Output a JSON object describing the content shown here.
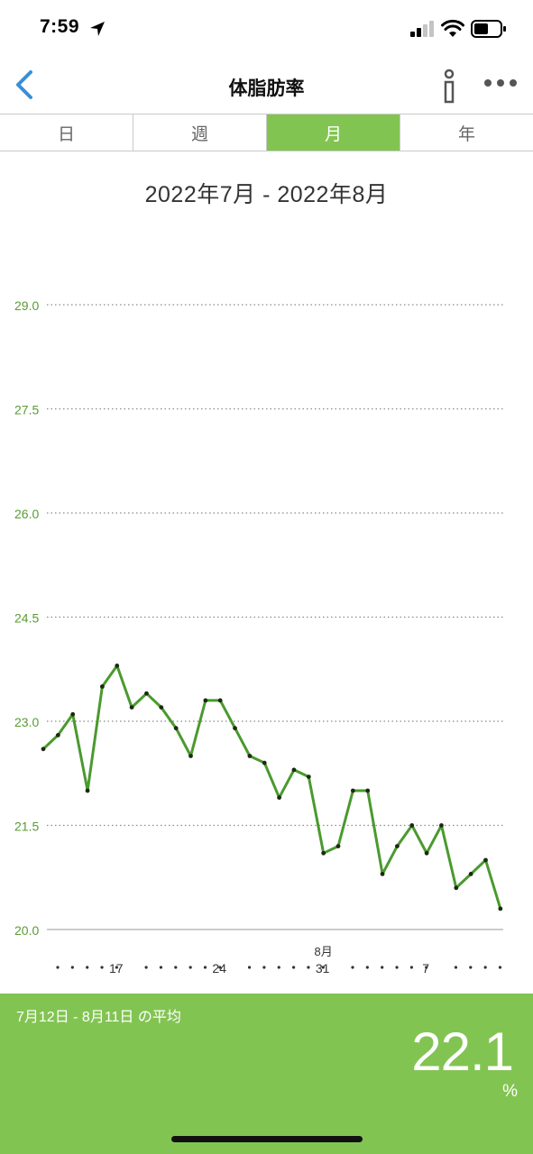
{
  "status_bar": {
    "time": "7:59"
  },
  "nav": {
    "title": "体脂肪率"
  },
  "tabs": [
    {
      "label": "日",
      "active": false
    },
    {
      "label": "週",
      "active": false
    },
    {
      "label": "月",
      "active": true
    },
    {
      "label": "年",
      "active": false
    }
  ],
  "range_title": "2022年7月 - 2022年8月",
  "colors": {
    "accent": "#82c452",
    "line": "#4a9a2e",
    "axis_label": "#5b9a35"
  },
  "chart_data": {
    "type": "line",
    "y_ticks": [
      "20.0",
      "21.5",
      "23.0",
      "24.5",
      "26.0",
      "27.5",
      "29.0"
    ],
    "ylim": [
      20.0,
      29.0
    ],
    "x_tick_labels": [
      {
        "label": "17",
        "index": 5
      },
      {
        "label": "24",
        "index": 12
      },
      {
        "label": "31",
        "index": 19
      },
      {
        "label": "7",
        "index": 26
      }
    ],
    "month_marker": {
      "label": "8月",
      "index": 19
    },
    "values": [
      22.6,
      22.8,
      23.1,
      22.0,
      23.5,
      23.8,
      23.2,
      23.4,
      23.2,
      22.9,
      22.5,
      23.3,
      23.3,
      22.9,
      22.5,
      22.4,
      21.9,
      22.3,
      22.2,
      21.1,
      21.2,
      22.0,
      22.0,
      20.8,
      21.2,
      21.5,
      21.1,
      21.5,
      20.6,
      20.8,
      21.0,
      20.3
    ]
  },
  "summary": {
    "label": "7月12日 - 8月11日 の平均",
    "value": "22.1",
    "unit": "%"
  }
}
